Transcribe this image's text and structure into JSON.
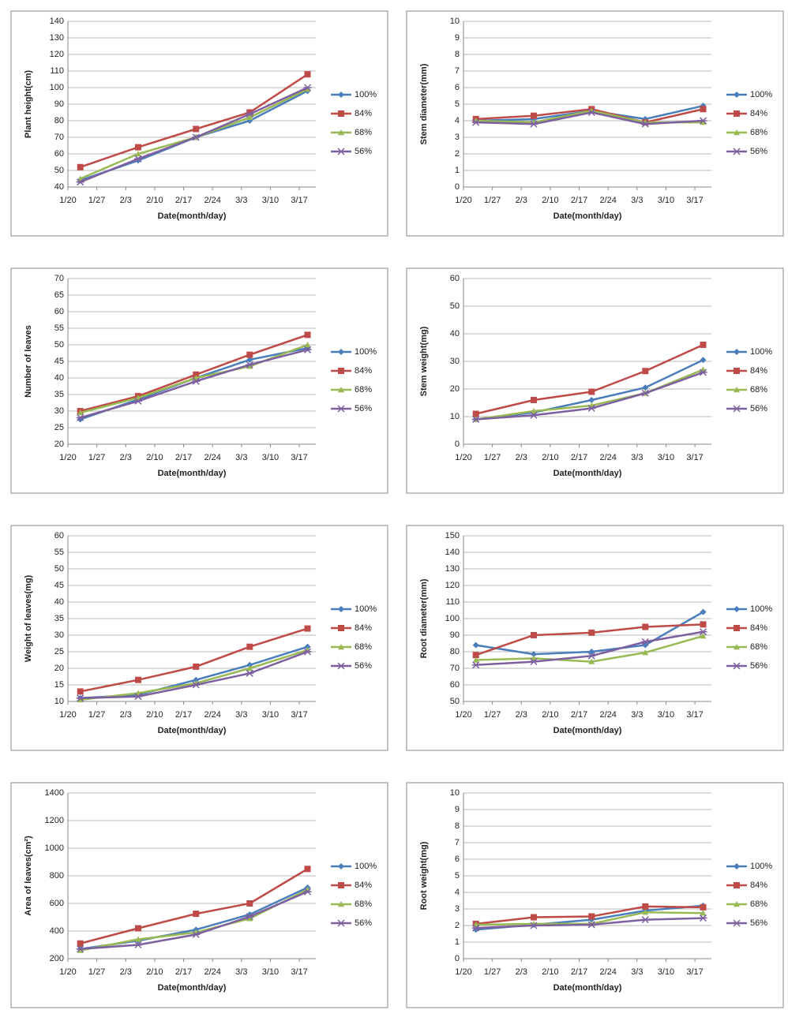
{
  "chart_data": [
    {
      "type": "line",
      "ylabel": "Plant height(cm)",
      "xlabel": "Date(month/day)",
      "x": [
        3,
        17,
        31,
        44,
        58
      ],
      "xlim": [
        0,
        60
      ],
      "xticks": [
        {
          "value": 0,
          "label": "1/20"
        },
        {
          "value": 7,
          "label": "1/27"
        },
        {
          "value": 14,
          "label": "2/3"
        },
        {
          "value": 21,
          "label": "2/10"
        },
        {
          "value": 28,
          "label": "2/17"
        },
        {
          "value": 35,
          "label": "2/24"
        },
        {
          "value": 42,
          "label": "3/3"
        },
        {
          "value": 49,
          "label": "3/10"
        },
        {
          "value": 56,
          "label": "3/17"
        }
      ],
      "ylim": [
        40,
        140
      ],
      "yticks": [
        40,
        50,
        60,
        70,
        80,
        90,
        100,
        110,
        120,
        130,
        140
      ],
      "grid": true,
      "legend": "right",
      "series": [
        {
          "name": "100%",
          "color": "#4a7ebb",
          "marker": "diamond",
          "values": [
            44,
            56,
            70,
            80,
            98
          ]
        },
        {
          "name": "84%",
          "color": "#be4b48",
          "marker": "square",
          "values": [
            52,
            64,
            75,
            85,
            108
          ]
        },
        {
          "name": "68%",
          "color": "#98b954",
          "marker": "triangle",
          "values": [
            45,
            60,
            70,
            82,
            99
          ]
        },
        {
          "name": "56%",
          "color": "#7d60a0",
          "marker": "x",
          "values": [
            43,
            57,
            70,
            84,
            100
          ]
        }
      ]
    },
    {
      "type": "line",
      "ylabel": "Stem diameter(mm)",
      "xlabel": "Date(month/day)",
      "x": [
        3,
        17,
        31,
        44,
        58
      ],
      "xlim": [
        0,
        60
      ],
      "xticks": [
        {
          "value": 0,
          "label": "1/20"
        },
        {
          "value": 7,
          "label": "1/27"
        },
        {
          "value": 14,
          "label": "2/3"
        },
        {
          "value": 21,
          "label": "2/10"
        },
        {
          "value": 28,
          "label": "2/17"
        },
        {
          "value": 35,
          "label": "2/24"
        },
        {
          "value": 42,
          "label": "3/3"
        },
        {
          "value": 49,
          "label": "3/10"
        },
        {
          "value": 56,
          "label": "3/17"
        }
      ],
      "ylim": [
        0,
        10
      ],
      "yticks": [
        0,
        1,
        2,
        3,
        4,
        5,
        6,
        7,
        8,
        9,
        10
      ],
      "grid": true,
      "legend": "right",
      "series": [
        {
          "name": "100%",
          "color": "#4a7ebb",
          "marker": "diamond",
          "values": [
            4.0,
            4.1,
            4.6,
            4.1,
            4.9
          ]
        },
        {
          "name": "84%",
          "color": "#be4b48",
          "marker": "square",
          "values": [
            4.1,
            4.3,
            4.7,
            3.9,
            4.7
          ]
        },
        {
          "name": "68%",
          "color": "#98b954",
          "marker": "triangle",
          "values": [
            4.0,
            3.9,
            4.6,
            3.9,
            3.9
          ]
        },
        {
          "name": "56%",
          "color": "#7d60a0",
          "marker": "x",
          "values": [
            3.9,
            3.8,
            4.5,
            3.8,
            4.0
          ]
        }
      ]
    },
    {
      "type": "line",
      "ylabel": "Number of leaves",
      "xlabel": "Date(month/day)",
      "x": [
        3,
        17,
        31,
        44,
        58
      ],
      "xlim": [
        0,
        60
      ],
      "xticks": [
        {
          "value": 0,
          "label": "1/20"
        },
        {
          "value": 7,
          "label": "1/27"
        },
        {
          "value": 14,
          "label": "2/3"
        },
        {
          "value": 21,
          "label": "2/10"
        },
        {
          "value": 28,
          "label": "2/17"
        },
        {
          "value": 35,
          "label": "2/24"
        },
        {
          "value": 42,
          "label": "3/3"
        },
        {
          "value": 49,
          "label": "3/10"
        },
        {
          "value": 56,
          "label": "3/17"
        }
      ],
      "ylim": [
        20,
        70
      ],
      "yticks": [
        20,
        25,
        30,
        35,
        40,
        45,
        50,
        55,
        60,
        65,
        70
      ],
      "grid": true,
      "legend": "right",
      "series": [
        {
          "name": "100%",
          "color": "#4a7ebb",
          "marker": "diamond",
          "values": [
            27.5,
            33.5,
            40,
            45.5,
            49
          ]
        },
        {
          "name": "84%",
          "color": "#be4b48",
          "marker": "square",
          "values": [
            30,
            34.5,
            41,
            47,
            53
          ]
        },
        {
          "name": "68%",
          "color": "#98b954",
          "marker": "triangle",
          "values": [
            29.5,
            34,
            40,
            43.5,
            50
          ]
        },
        {
          "name": "56%",
          "color": "#7d60a0",
          "marker": "x",
          "values": [
            28,
            33,
            39,
            44,
            48.5
          ]
        }
      ]
    },
    {
      "type": "line",
      "ylabel": "Stem weight(mg)",
      "xlabel": "Date(month/day)",
      "x": [
        3,
        17,
        31,
        44,
        58
      ],
      "xlim": [
        0,
        60
      ],
      "xticks": [
        {
          "value": 0,
          "label": "1/20"
        },
        {
          "value": 7,
          "label": "1/27"
        },
        {
          "value": 14,
          "label": "2/3"
        },
        {
          "value": 21,
          "label": "2/10"
        },
        {
          "value": 28,
          "label": "2/17"
        },
        {
          "value": 35,
          "label": "2/24"
        },
        {
          "value": 42,
          "label": "3/3"
        },
        {
          "value": 49,
          "label": "3/10"
        },
        {
          "value": 56,
          "label": "3/17"
        }
      ],
      "ylim": [
        0,
        60
      ],
      "yticks": [
        0,
        10,
        20,
        30,
        40,
        50,
        60
      ],
      "grid": true,
      "legend": "right",
      "series": [
        {
          "name": "100%",
          "color": "#4a7ebb",
          "marker": "diamond",
          "values": [
            9,
            11.5,
            16,
            20.5,
            30.5
          ]
        },
        {
          "name": "84%",
          "color": "#be4b48",
          "marker": "square",
          "values": [
            11,
            16,
            19,
            26.5,
            36
          ]
        },
        {
          "name": "68%",
          "color": "#98b954",
          "marker": "triangle",
          "values": [
            9,
            12,
            14,
            18.5,
            27
          ]
        },
        {
          "name": "56%",
          "color": "#7d60a0",
          "marker": "x",
          "values": [
            9,
            10.5,
            13,
            18.5,
            26
          ]
        }
      ]
    },
    {
      "type": "line",
      "ylabel": "Weight of leaves(mg)",
      "xlabel": "Date(month/day)",
      "x": [
        3,
        17,
        31,
        44,
        58
      ],
      "xlim": [
        0,
        60
      ],
      "xticks": [
        {
          "value": 0,
          "label": "1/20"
        },
        {
          "value": 7,
          "label": "1/27"
        },
        {
          "value": 14,
          "label": "2/3"
        },
        {
          "value": 21,
          "label": "2/10"
        },
        {
          "value": 28,
          "label": "2/17"
        },
        {
          "value": 35,
          "label": "2/24"
        },
        {
          "value": 42,
          "label": "3/3"
        },
        {
          "value": 49,
          "label": "3/10"
        },
        {
          "value": 56,
          "label": "3/17"
        }
      ],
      "ylim": [
        10,
        60
      ],
      "yticks": [
        10,
        15,
        20,
        25,
        30,
        35,
        40,
        45,
        50,
        55,
        60
      ],
      "grid": true,
      "legend": "right",
      "series": [
        {
          "name": "100%",
          "color": "#4a7ebb",
          "marker": "diamond",
          "values": [
            11,
            12,
            16.5,
            21,
            26.5
          ]
        },
        {
          "name": "84%",
          "color": "#be4b48",
          "marker": "square",
          "values": [
            13,
            16.5,
            20.5,
            26.5,
            32
          ]
        },
        {
          "name": "68%",
          "color": "#98b954",
          "marker": "triangle",
          "values": [
            10.5,
            12.5,
            15.5,
            20,
            25.5
          ]
        },
        {
          "name": "56%",
          "color": "#7d60a0",
          "marker": "x",
          "values": [
            11,
            11.5,
            15,
            18.5,
            25
          ]
        }
      ]
    },
    {
      "type": "line",
      "ylabel": "Root diameter(mm)",
      "xlabel": "Date(month/day)",
      "x": [
        3,
        17,
        31,
        44,
        58
      ],
      "xlim": [
        0,
        60
      ],
      "xticks": [
        {
          "value": 0,
          "label": "1/20"
        },
        {
          "value": 7,
          "label": "1/27"
        },
        {
          "value": 14,
          "label": "2/3"
        },
        {
          "value": 21,
          "label": "2/10"
        },
        {
          "value": 28,
          "label": "2/17"
        },
        {
          "value": 35,
          "label": "2/24"
        },
        {
          "value": 42,
          "label": "3/3"
        },
        {
          "value": 49,
          "label": "3/10"
        },
        {
          "value": 56,
          "label": "3/17"
        }
      ],
      "ylim": [
        50,
        150
      ],
      "yticks": [
        50,
        60,
        70,
        80,
        90,
        100,
        110,
        120,
        130,
        140,
        150
      ],
      "grid": true,
      "legend": "right",
      "series": [
        {
          "name": "100%",
          "color": "#4a7ebb",
          "marker": "diamond",
          "values": [
            84,
            78.5,
            80,
            84,
            104
          ]
        },
        {
          "name": "84%",
          "color": "#be4b48",
          "marker": "square",
          "values": [
            78,
            90,
            91.5,
            95,
            96.5
          ]
        },
        {
          "name": "68%",
          "color": "#98b954",
          "marker": "triangle",
          "values": [
            75,
            76,
            74,
            79.5,
            89.5
          ]
        },
        {
          "name": "56%",
          "color": "#7d60a0",
          "marker": "x",
          "values": [
            72,
            74,
            77.5,
            86,
            92
          ]
        }
      ]
    },
    {
      "type": "line",
      "ylabel": "Area of leaves(cm²)",
      "xlabel": "Date(month/day)",
      "x": [
        3,
        17,
        31,
        44,
        58
      ],
      "xlim": [
        0,
        60
      ],
      "xticks": [
        {
          "value": 0,
          "label": "1/20"
        },
        {
          "value": 7,
          "label": "1/27"
        },
        {
          "value": 14,
          "label": "2/3"
        },
        {
          "value": 21,
          "label": "2/10"
        },
        {
          "value": 28,
          "label": "2/17"
        },
        {
          "value": 35,
          "label": "2/24"
        },
        {
          "value": 42,
          "label": "3/3"
        },
        {
          "value": 49,
          "label": "3/10"
        },
        {
          "value": 56,
          "label": "3/17"
        }
      ],
      "ylim": [
        200,
        1400
      ],
      "yticks": [
        200,
        400,
        600,
        800,
        1000,
        1200,
        1400
      ],
      "grid": true,
      "legend": "right",
      "series": [
        {
          "name": "100%",
          "color": "#4a7ebb",
          "marker": "diamond",
          "values": [
            270,
            330,
            410,
            520,
            715
          ]
        },
        {
          "name": "84%",
          "color": "#be4b48",
          "marker": "square",
          "values": [
            310,
            420,
            525,
            600,
            850
          ]
        },
        {
          "name": "68%",
          "color": "#98b954",
          "marker": "triangle",
          "values": [
            260,
            340,
            390,
            490,
            700
          ]
        },
        {
          "name": "56%",
          "color": "#7d60a0",
          "marker": "x",
          "values": [
            270,
            300,
            375,
            505,
            685
          ]
        }
      ]
    },
    {
      "type": "line",
      "ylabel": "Root weight(mg)",
      "xlabel": "Date(month/day)",
      "x": [
        3,
        17,
        31,
        44,
        58
      ],
      "xlim": [
        0,
        60
      ],
      "xticks": [
        {
          "value": 0,
          "label": "1/20"
        },
        {
          "value": 7,
          "label": "1/27"
        },
        {
          "value": 14,
          "label": "2/3"
        },
        {
          "value": 21,
          "label": "2/10"
        },
        {
          "value": 28,
          "label": "2/17"
        },
        {
          "value": 35,
          "label": "2/24"
        },
        {
          "value": 42,
          "label": "3/3"
        },
        {
          "value": 49,
          "label": "3/10"
        },
        {
          "value": 56,
          "label": "3/17"
        }
      ],
      "ylim": [
        0,
        10
      ],
      "yticks": [
        0,
        1,
        2,
        3,
        4,
        5,
        6,
        7,
        8,
        9,
        10
      ],
      "grid": true,
      "legend": "right",
      "series": [
        {
          "name": "100%",
          "color": "#4a7ebb",
          "marker": "diamond",
          "values": [
            1.75,
            2.05,
            2.35,
            2.9,
            3.2
          ]
        },
        {
          "name": "84%",
          "color": "#be4b48",
          "marker": "square",
          "values": [
            2.1,
            2.5,
            2.55,
            3.15,
            3.1
          ]
        },
        {
          "name": "68%",
          "color": "#98b954",
          "marker": "triangle",
          "values": [
            2.05,
            2.1,
            2.1,
            2.8,
            2.75
          ]
        },
        {
          "name": "56%",
          "color": "#7d60a0",
          "marker": "x",
          "values": [
            1.85,
            2.0,
            2.05,
            2.35,
            2.45
          ]
        }
      ]
    }
  ]
}
